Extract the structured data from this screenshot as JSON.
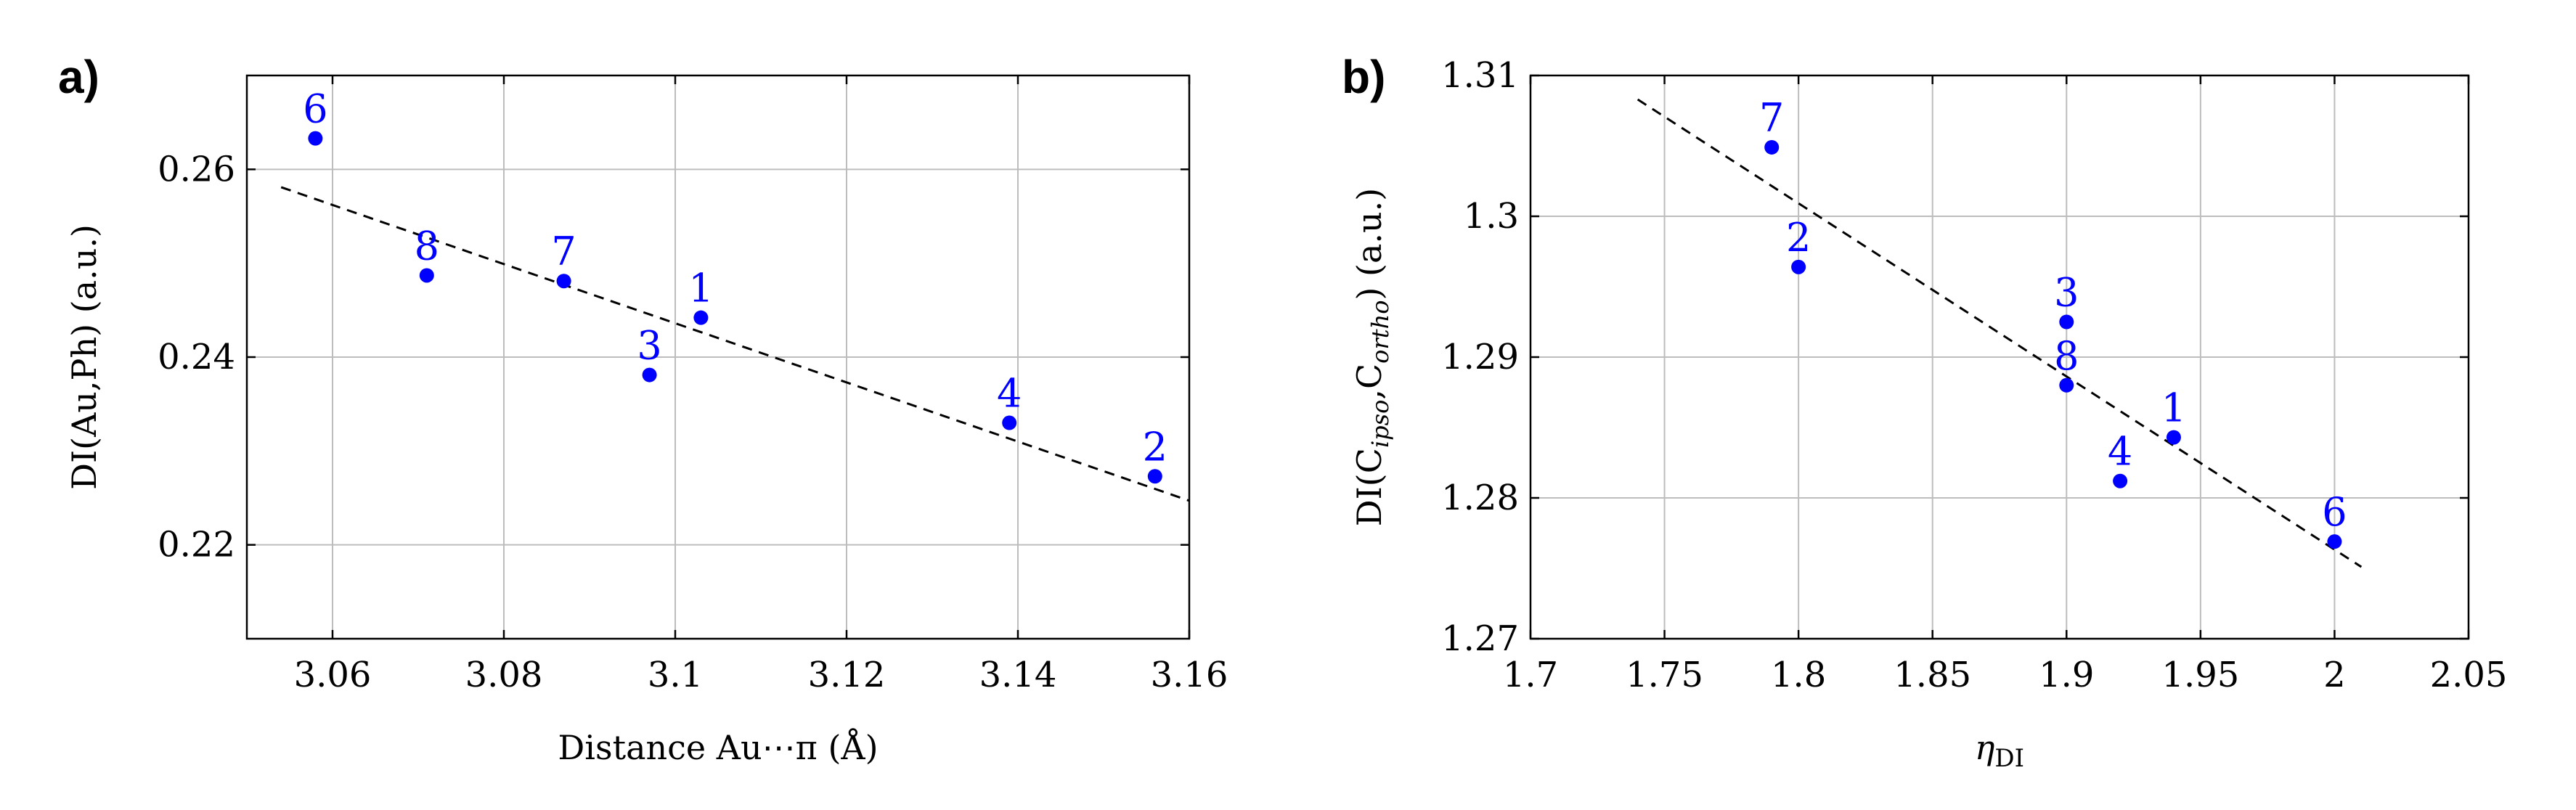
{
  "chart_data": [
    {
      "type": "scatter",
      "panel_label": "a)",
      "title": "",
      "xlabel": "Distance Au⋯π (Å)",
      "ylabel": "DI(Au,Ph) (a.u.)",
      "xlim": [
        3.05,
        3.16
      ],
      "ylim": [
        0.21,
        0.27
      ],
      "xticks": [
        3.06,
        3.08,
        3.1,
        3.12,
        3.14,
        3.16
      ],
      "xtick_labels": [
        "3.06",
        "3.08",
        "3.1",
        "3.12",
        "3.14",
        "3.16"
      ],
      "yticks": [
        0.22,
        0.24,
        0.26
      ],
      "ytick_labels": [
        "0.22",
        "0.24",
        "0.26"
      ],
      "grid": true,
      "marker_color": "#0000ff",
      "points": [
        {
          "label": "6",
          "x": 3.058,
          "y": 0.2633
        },
        {
          "label": "8",
          "x": 3.071,
          "y": 0.2487
        },
        {
          "label": "7",
          "x": 3.087,
          "y": 0.2481
        },
        {
          "label": "3",
          "x": 3.097,
          "y": 0.2381
        },
        {
          "label": "1",
          "x": 3.103,
          "y": 0.2442
        },
        {
          "label": "4",
          "x": 3.139,
          "y": 0.233
        },
        {
          "label": "2",
          "x": 3.156,
          "y": 0.2273
        }
      ],
      "fit_line": {
        "style": "dashed",
        "color": "#000000",
        "x": [
          3.054,
          3.16
        ],
        "y": [
          0.2581,
          0.2247
        ]
      }
    },
    {
      "type": "scatter",
      "panel_label": "b)",
      "title": "",
      "xlabel": "η_DI",
      "ylabel": "DI(C_ipso,C_ortho) (a.u.)",
      "xlim": [
        1.7,
        2.05
      ],
      "ylim": [
        1.27,
        1.31
      ],
      "xticks": [
        1.7,
        1.75,
        1.8,
        1.85,
        1.9,
        1.95,
        2.0,
        2.05
      ],
      "xtick_labels": [
        "1.7",
        "1.75",
        "1.8",
        "1.85",
        "1.9",
        "1.95",
        "2",
        "2.05"
      ],
      "yticks": [
        1.27,
        1.28,
        1.29,
        1.3,
        1.31
      ],
      "ytick_labels": [
        "1.27",
        "1.28",
        "1.29",
        "1.3",
        "1.31"
      ],
      "grid": true,
      "marker_color": "#0000ff",
      "points": [
        {
          "label": "7",
          "x": 1.79,
          "y": 1.3049
        },
        {
          "label": "2",
          "x": 1.8,
          "y": 1.2964
        },
        {
          "label": "3",
          "x": 1.9,
          "y": 1.2925
        },
        {
          "label": "8",
          "x": 1.9,
          "y": 1.288
        },
        {
          "label": "1",
          "x": 1.94,
          "y": 1.2843
        },
        {
          "label": "4",
          "x": 1.92,
          "y": 1.2812
        },
        {
          "label": "6",
          "x": 2.0,
          "y": 1.2769
        }
      ],
      "fit_line": {
        "style": "dashed",
        "color": "#000000",
        "x": [
          1.74,
          2.01
        ],
        "y": [
          1.3083,
          1.2751
        ]
      }
    }
  ]
}
